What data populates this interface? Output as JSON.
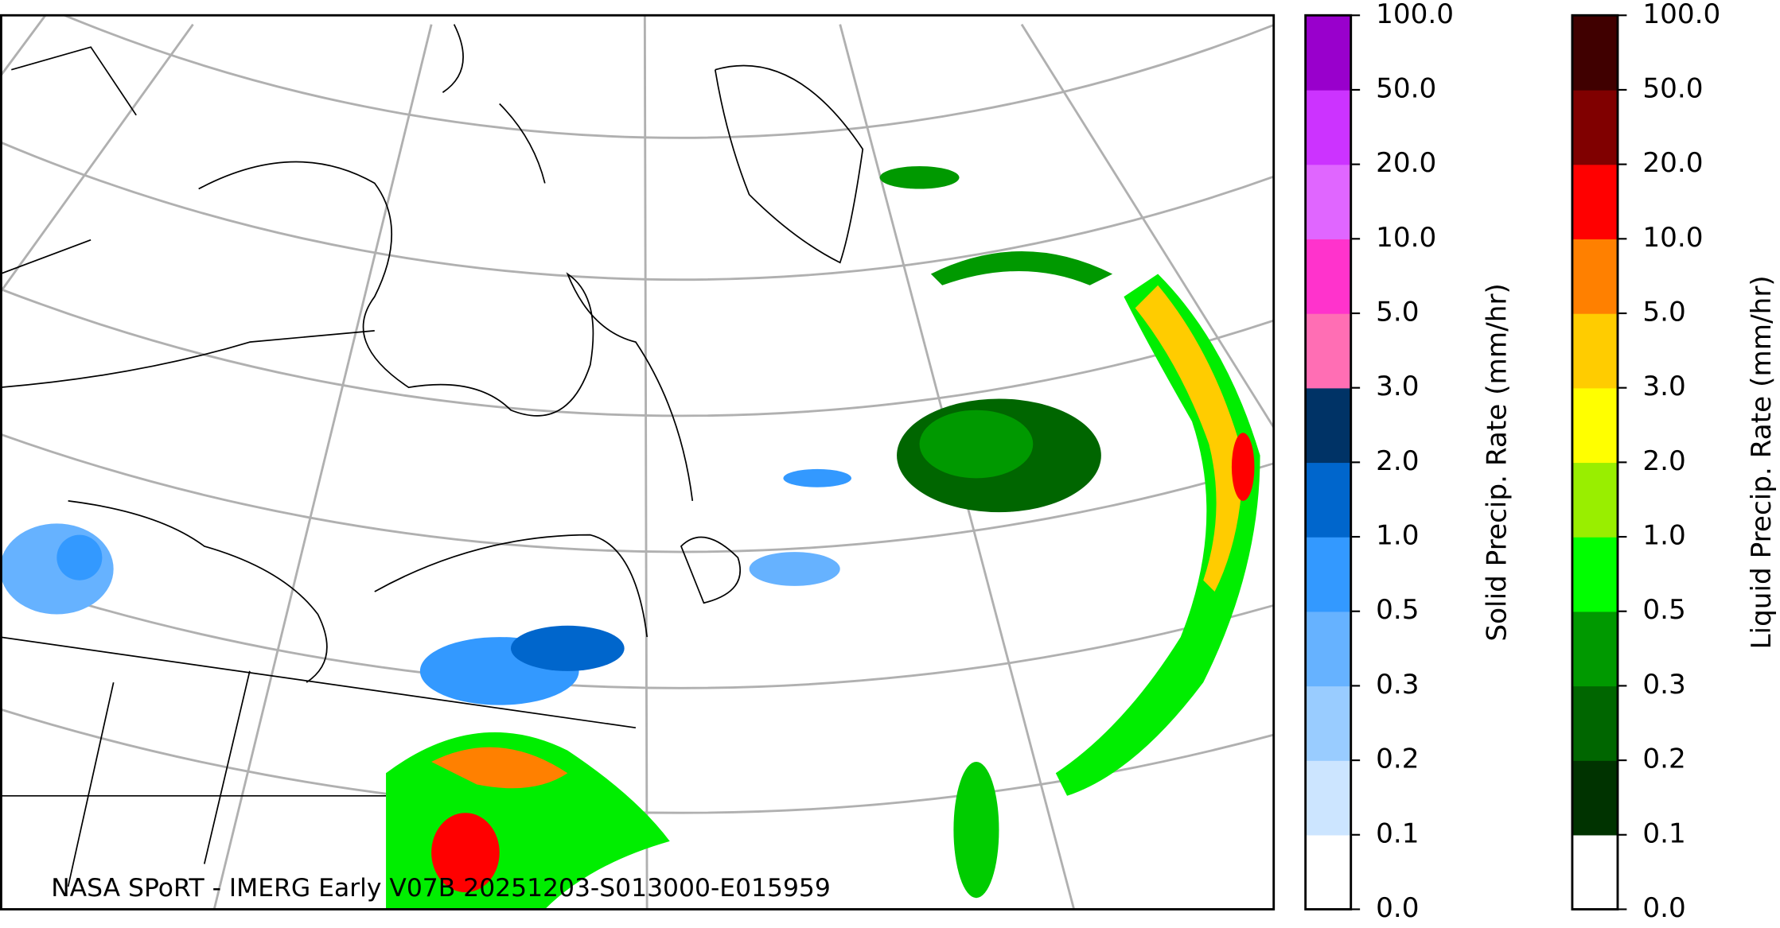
{
  "map": {
    "credit": "NASA SPoRT - IMERG Early V07B 20251203-S013000-E015959",
    "colorbars": [
      {
        "label": "Solid Precip. Rate (mm/hr)",
        "ticks": [
          {
            "value": 0,
            "label": "0.0"
          },
          0.1,
          0.2,
          0.3,
          0.5,
          {
            "value": 1,
            "label": "1.0"
          },
          {
            "value": 2,
            "label": "2.0"
          },
          {
            "value": 3,
            "label": "3.0"
          },
          {
            "value": 5,
            "label": "5.0"
          },
          {
            "value": 10,
            "label": "10.0"
          },
          {
            "value": 20,
            "label": "20.0"
          },
          {
            "value": 50,
            "label": "50.0"
          },
          {
            "value": 100,
            "label": "100.0"
          }
        ],
        "colors": [
          "#ffffff",
          "#cce5ff",
          "#99ccff",
          "#66b2ff",
          "#3399ff",
          "#0066cc",
          "#003366",
          "#ff6eb4",
          "#ff33cc",
          "#e066ff",
          "#cc33ff",
          "#9900cc"
        ]
      },
      {
        "label": "Liquid Precip. Rate (mm/hr)",
        "ticks": [
          {
            "value": 0,
            "label": "0.0"
          },
          0.1,
          0.2,
          0.3,
          0.5,
          {
            "value": 1,
            "label": "1.0"
          },
          {
            "value": 2,
            "label": "2.0"
          },
          {
            "value": 3,
            "label": "3.0"
          },
          {
            "value": 5,
            "label": "5.0"
          },
          {
            "value": 10,
            "label": "10.0"
          },
          {
            "value": 20,
            "label": "20.0"
          },
          {
            "value": 50,
            "label": "50.0"
          },
          {
            "value": 100,
            "label": "100.0"
          }
        ],
        "colors": [
          "#ffffff",
          "#003300",
          "#006600",
          "#009900",
          "#00ff00",
          "#99ee00",
          "#ffff00",
          "#ffcc00",
          "#ff8000",
          "#ff0000",
          "#800000",
          "#400000"
        ]
      }
    ]
  }
}
